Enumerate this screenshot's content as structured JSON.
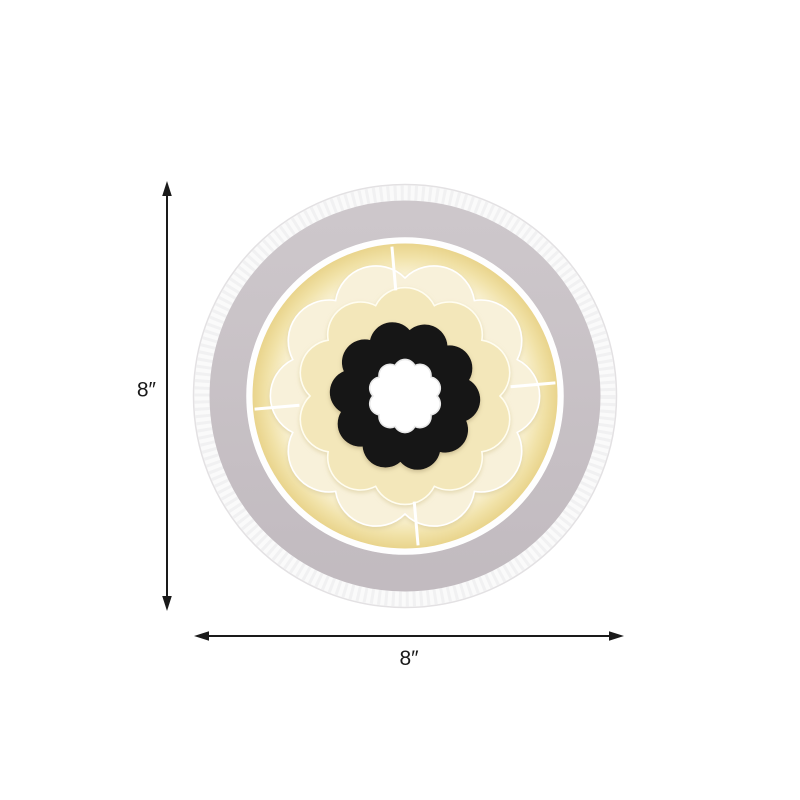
{
  "page": {
    "background_color": "#ffffff"
  },
  "product_view": {
    "item_name": "round-flower-flush-mount-ceiling-light",
    "dimension_height": {
      "value": "8″"
    },
    "dimension_width": {
      "value": "8″"
    },
    "dimension_line_color": "#1a1a1a",
    "fixture": {
      "outer_rim_color": "#fafafa",
      "outer_edge_color": "#e3e1e3",
      "facet_color": "#ededee",
      "gray_ring_top_color": "#cdc7cb",
      "gray_ring_bottom_color": "#c2bbc0",
      "gap_ring_color": "#fefefe",
      "glow": {
        "center": "#fffef9",
        "mid": "#fdf9ec",
        "soft": "#f9f1d2",
        "warm": "#f1e2a8",
        "edge": "#e9d48c"
      },
      "notch_color": "#ffffff",
      "layers": [
        {
          "name": "outer-petal-flower",
          "petals": 10,
          "color": "#f8f1da",
          "edge": "#ffffff"
        },
        {
          "name": "inner-petal-flower",
          "petals": 10,
          "color": "#f3e7ba",
          "edge": "#fffdf0"
        },
        {
          "name": "black-flower",
          "petals": 10,
          "color": "#171212"
        },
        {
          "name": "center-white-flower",
          "petals": 10,
          "color": "#ffffff",
          "edge": "#e9e9e9"
        }
      ]
    }
  }
}
